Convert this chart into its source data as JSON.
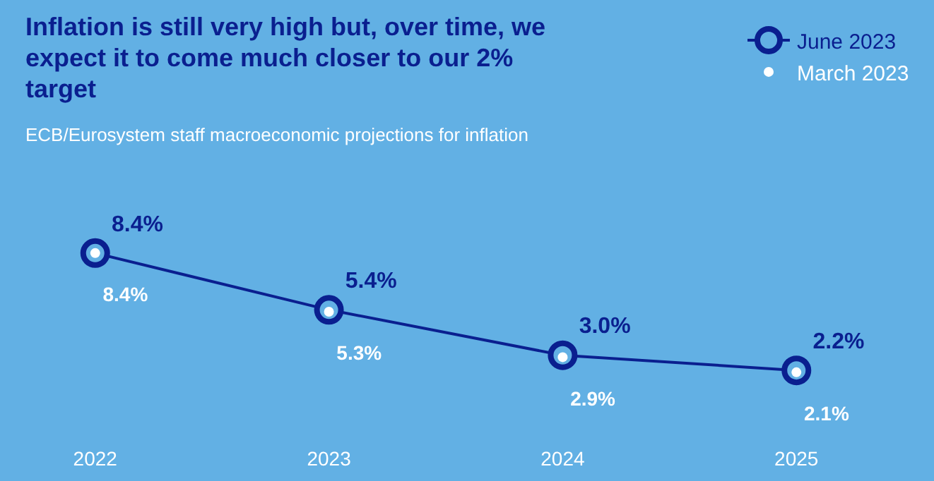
{
  "chart_data": {
    "type": "line",
    "title": "Inflation is still very high but, over time, we expect it to come much closer to our 2% target",
    "subtitle": "ECB/Eurosystem staff macroeconomic projections for inflation",
    "categories": [
      "2022",
      "2023",
      "2024",
      "2025"
    ],
    "series": [
      {
        "name": "June 2023",
        "color": "#0a1f8f",
        "values": [
          8.4,
          5.4,
          3.0,
          2.2
        ],
        "value_labels": [
          "8.4%",
          "5.4%",
          "3.0%",
          "2.2%"
        ],
        "marker": "circle"
      },
      {
        "name": "March 2023",
        "type": "scatter",
        "color": "#ffffff",
        "values": [
          8.4,
          5.3,
          2.9,
          2.1
        ],
        "value_labels": [
          "8.4%",
          "5.3%",
          "2.9%",
          "2.1%"
        ],
        "marker": "circle"
      }
    ],
    "legend": "top right",
    "grid": false,
    "tick_labels": "x"
  }
}
